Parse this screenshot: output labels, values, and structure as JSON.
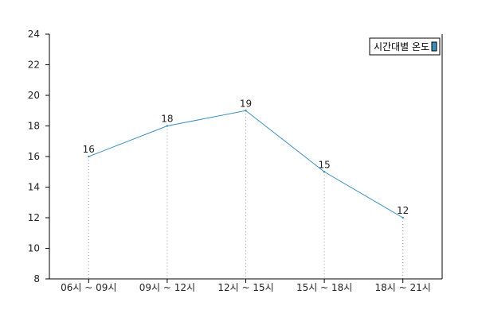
{
  "chart_data": {
    "type": "line",
    "title": "",
    "xlabel": "",
    "ylabel": "",
    "categories": [
      "06시 ~ 09시",
      "09시 ~ 12시",
      "12시 ~ 15시",
      "15시 ~ 18시",
      "18시 ~ 21시"
    ],
    "series": [
      {
        "name": "시간대별 온도",
        "values": [
          16,
          18,
          19,
          15,
          12
        ],
        "color": "#3a8fc0"
      }
    ],
    "ylim": [
      8,
      24
    ],
    "yticks": [
      8,
      10,
      12,
      14,
      16,
      18,
      20,
      22,
      24
    ],
    "grid": false,
    "drop_lines": true,
    "data_labels": true,
    "legend_position": "top-right"
  }
}
